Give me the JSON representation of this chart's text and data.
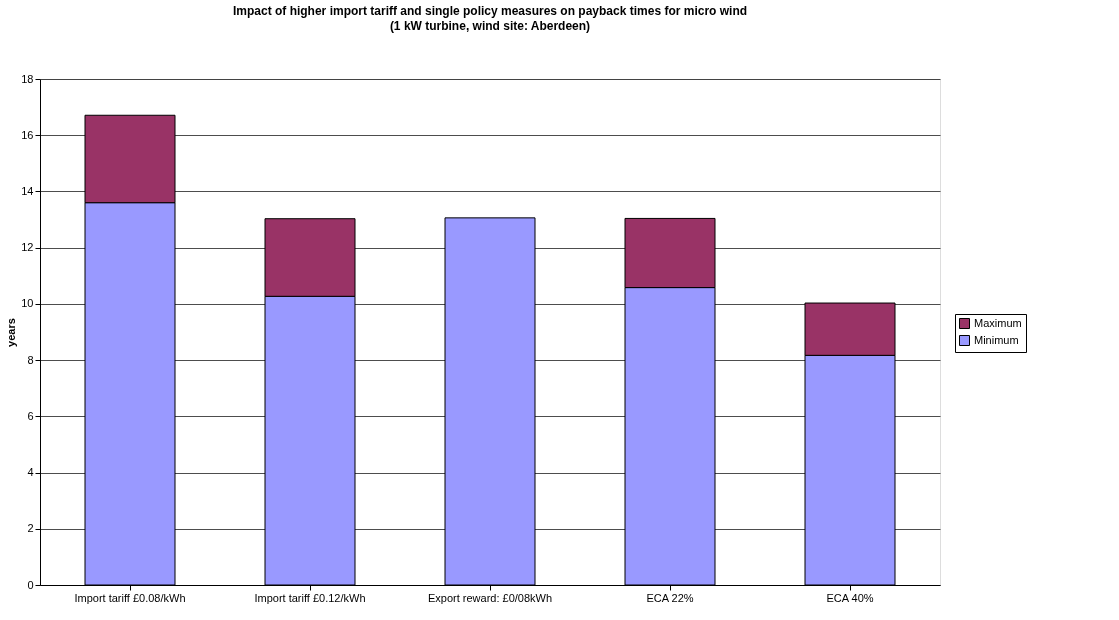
{
  "chart_data": {
    "type": "bar",
    "stacked": true,
    "title": "Impact of higher import tariff and single policy measures on payback times for micro wind",
    "subtitle": "(1 kW turbine, wind site: Aberdeen)",
    "ylabel": "years",
    "categories": [
      "Import tariff £0.08/kWh",
      "Import tariff £0.12/kWh",
      "Export reward: £0/08kWh",
      "ECA 22%",
      "ECA 40%"
    ],
    "series": [
      {
        "name": "Minimum",
        "color": "#9999ff",
        "values": [
          13.6,
          10.27,
          13.06,
          10.58,
          8.17
        ]
      },
      {
        "name": "Maximum",
        "color": "#993366",
        "values": [
          3.11,
          2.76,
          null,
          2.46,
          1.86
        ]
      }
    ],
    "ylim": [
      0,
      18
    ],
    "yticks": [
      0,
      2,
      4,
      6,
      8,
      10,
      12,
      14,
      16,
      18
    ],
    "grid": "y",
    "legend": "right"
  }
}
